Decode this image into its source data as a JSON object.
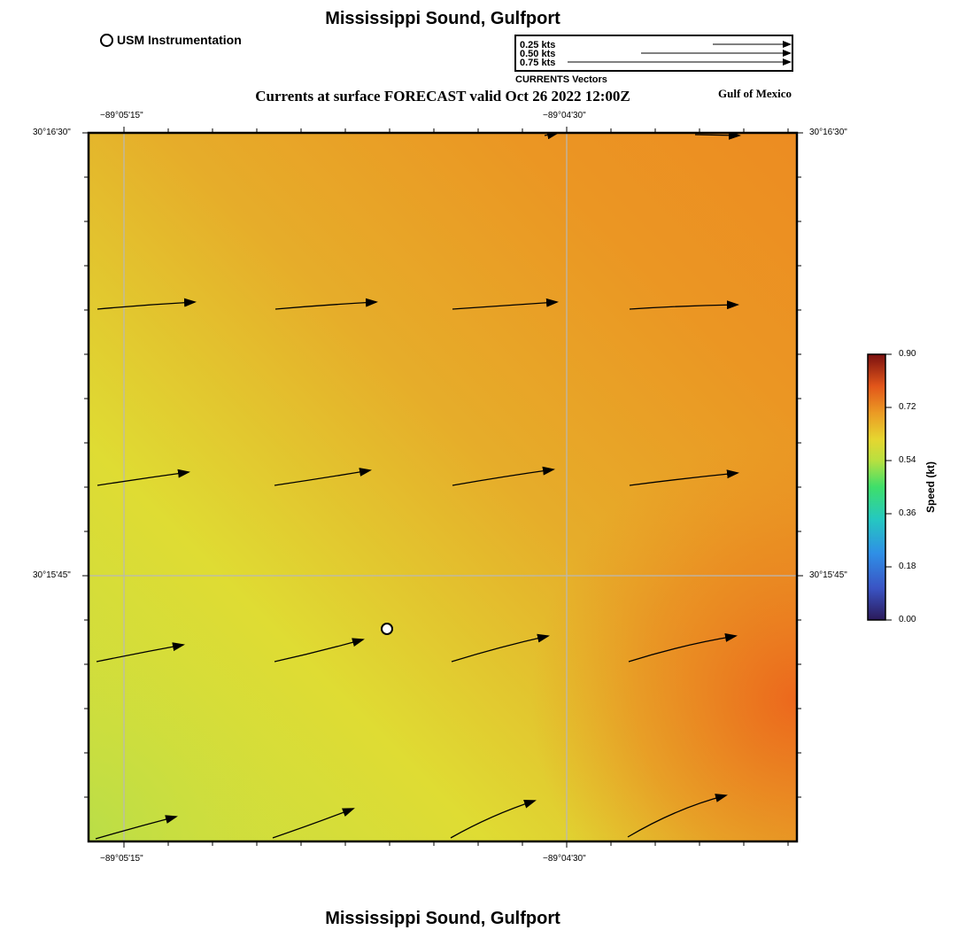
{
  "map": {
    "title": "Mississippi Sound, Gulfport",
    "subtitle": "Currents at surface FORECAST valid Oct 26 2022 12:00Z",
    "region": "Gulf of Mexico",
    "footer_title": "Mississippi Sound, Gulfport"
  },
  "legend": {
    "station_label": "USM Instrumentation",
    "vector_scale": [
      {
        "label": "0.25 kts",
        "speed_kts": 0.25
      },
      {
        "label": "0.50 kts",
        "speed_kts": 0.5
      },
      {
        "label": "0.75 kts",
        "speed_kts": 0.75
      }
    ],
    "vector_caption": "CURRENTS Vectors"
  },
  "axes": {
    "lon_ticks": [
      "−89°05'15\"",
      "−89°04'30\""
    ],
    "lat_ticks": [
      "30°16'30\"",
      "30°15'45\""
    ]
  },
  "colorbar": {
    "title": "Speed (kt)",
    "ticks": [
      "0.90",
      "0.72",
      "0.54",
      "0.36",
      "0.18",
      "0.00"
    ]
  },
  "colors": {
    "speed_low": "#2b1a5a",
    "speed_mid": "#dedb33",
    "speed_high": "#ec6a1e",
    "speed_max": "#7a1010"
  }
}
